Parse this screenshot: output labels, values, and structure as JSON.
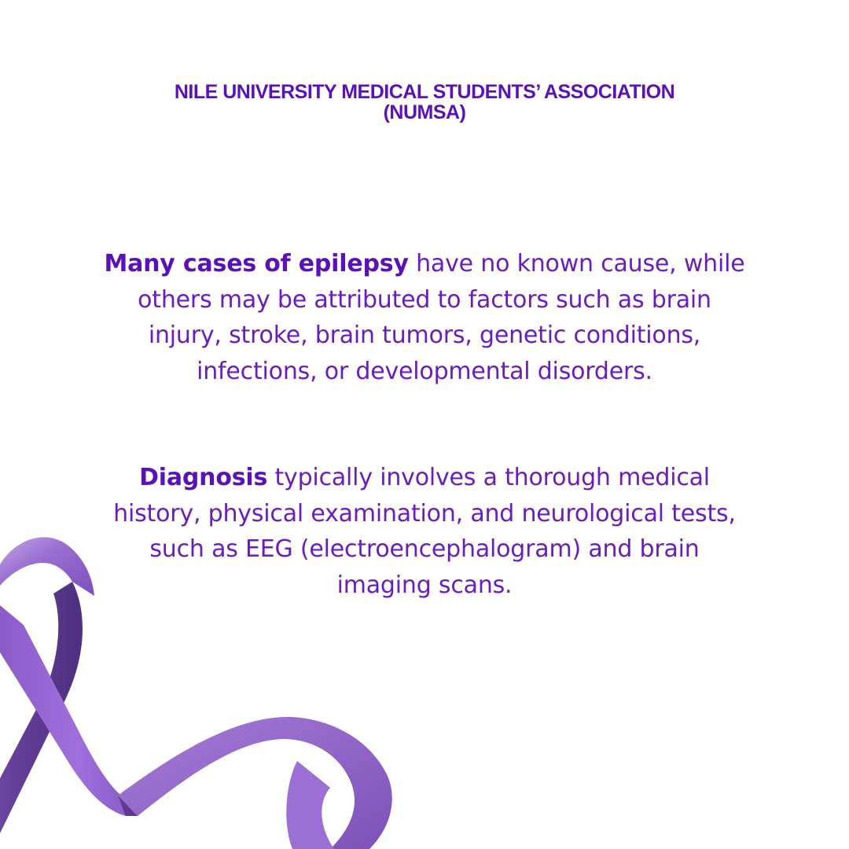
{
  "header": {
    "line1": "NILE UNIVERSITY MEDICAL STUDENTS’ ASSOCIATION",
    "line2": "(NUMSA)"
  },
  "paragraphs": [
    {
      "bold": "Many cases of epilepsy",
      "text": " have no known cause, while others may be attributed to factors such as brain injury, stroke, brain tumors, genetic conditions, infections, or developmental disorders."
    },
    {
      "bold": "Diagnosis",
      "text": " typically involves a thorough medical history, physical examination, and neurological tests, such as EEG (electroencephalogram) and brain imaging scans."
    }
  ],
  "decoration": {
    "icon": "awareness-ribbon-icon",
    "color_light": "#a77bd8",
    "color_mid": "#8a5cc6",
    "color_dark": "#5e3a8e"
  },
  "colors": {
    "text": "#6b1cbf",
    "heading": "#5a12b8",
    "background": "#ffffff"
  }
}
